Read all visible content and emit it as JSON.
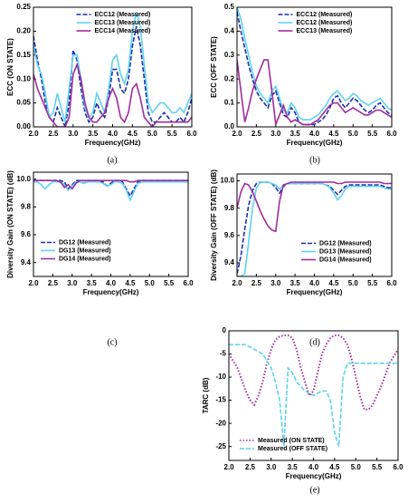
{
  "chart_data": [
    {
      "type": "line",
      "caption": "(a)",
      "x_label": "Frequency(GHz)",
      "y_label": "ECC (ON STATE)",
      "x": [
        2.0,
        2.1,
        2.2,
        2.3,
        2.4,
        2.5,
        2.6,
        2.7,
        2.8,
        2.9,
        3.0,
        3.1,
        3.2,
        3.3,
        3.4,
        3.5,
        3.6,
        3.7,
        3.8,
        3.9,
        4.0,
        4.1,
        4.2,
        4.3,
        4.4,
        4.5,
        4.6,
        4.7,
        4.8,
        4.9,
        5.0,
        5.1,
        5.2,
        5.3,
        5.4,
        5.5,
        5.6,
        5.7,
        5.8,
        5.9,
        6.0
      ],
      "xlim": [
        2.0,
        6.0
      ],
      "xticks": [
        {
          "value": 2.0,
          "label": "2.0"
        },
        2.5,
        {
          "value": 3.0,
          "label": "3.0"
        },
        3.5,
        {
          "value": 4.0,
          "label": "4.0"
        },
        4.5,
        {
          "value": 5.0,
          "label": "5.0"
        },
        5.5,
        {
          "value": 6.0,
          "label": "6.0"
        }
      ],
      "ylim": [
        0,
        0.25
      ],
      "yticks": [
        {
          "value": 0,
          "label": "0.00"
        },
        0.05,
        {
          "value": 0.1,
          "label": "0.10"
        },
        0.15,
        {
          "value": 0.2,
          "label": "0.20"
        },
        0.25
      ],
      "legend": "upper center",
      "series": [
        {
          "name": "ECC12 (Measured)",
          "color": "#1a2fb0",
          "style": "dashed",
          "values": [
            0.19,
            0.14,
            0.1,
            0.05,
            0.02,
            0.01,
            0.04,
            0.02,
            0.0,
            0.05,
            0.16,
            0.14,
            0.08,
            0.03,
            0.01,
            0.02,
            0.05,
            0.03,
            0.02,
            0.06,
            0.12,
            0.12,
            0.08,
            0.07,
            0.1,
            0.17,
            0.21,
            0.17,
            0.1,
            0.03,
            0.01,
            0.01,
            0.02,
            0.03,
            0.02,
            0.01,
            0.01,
            0.02,
            0.01,
            0.03,
            0.06
          ]
        },
        {
          "name": "ECC13 (Measured)",
          "color": "#5fd3f0",
          "style": "solid",
          "values": [
            0.17,
            0.13,
            0.11,
            0.07,
            0.02,
            0.03,
            0.07,
            0.04,
            0.01,
            0.08,
            0.15,
            0.15,
            0.1,
            0.04,
            0.02,
            0.03,
            0.07,
            0.05,
            0.03,
            0.08,
            0.14,
            0.15,
            0.11,
            0.09,
            0.12,
            0.2,
            0.24,
            0.21,
            0.13,
            0.05,
            0.03,
            0.04,
            0.05,
            0.05,
            0.04,
            0.03,
            0.03,
            0.04,
            0.03,
            0.05,
            0.07
          ]
        },
        {
          "name": "ECC14 (Measured)",
          "color": "#a02c9c",
          "style": "solid",
          "values": [
            0.11,
            0.08,
            0.06,
            0.04,
            0.02,
            0.01,
            0.0,
            0.0,
            0.0,
            0.02,
            0.11,
            0.13,
            0.1,
            0.05,
            0.02,
            0.01,
            0.01,
            0.02,
            0.03,
            0.06,
            0.08,
            0.06,
            0.02,
            0.01,
            0.03,
            0.08,
            0.09,
            0.06,
            0.02,
            0.01,
            0.0,
            0.01,
            0.01,
            0.01,
            0.01,
            0.01,
            0.01,
            0.01,
            0.01,
            0.01,
            0.02
          ]
        }
      ]
    },
    {
      "type": "line",
      "caption": "(b)",
      "x_label": "Frequency(GHz)",
      "y_label": "ECC (OFF STATE)",
      "x": [
        2.0,
        2.1,
        2.2,
        2.3,
        2.4,
        2.5,
        2.6,
        2.7,
        2.8,
        2.9,
        3.0,
        3.1,
        3.2,
        3.3,
        3.4,
        3.5,
        3.6,
        3.7,
        3.8,
        3.9,
        4.0,
        4.1,
        4.2,
        4.3,
        4.4,
        4.5,
        4.6,
        4.7,
        4.8,
        4.9,
        5.0,
        5.1,
        5.2,
        5.3,
        5.4,
        5.5,
        5.6,
        5.7,
        5.8,
        5.9,
        6.0
      ],
      "xlim": [
        2.0,
        6.0
      ],
      "xticks": [
        {
          "value": 2.0,
          "label": "2.0"
        },
        2.5,
        {
          "value": 3.0,
          "label": "3.0"
        },
        3.5,
        {
          "value": 4.0,
          "label": "4.0"
        },
        4.5,
        {
          "value": 5.0,
          "label": "5.0"
        },
        5.5,
        {
          "value": 6.0,
          "label": "6.0"
        }
      ],
      "ylim": [
        0,
        0.5
      ],
      "yticks": [
        {
          "value": 0,
          "label": "0.0"
        },
        0.1,
        0.2,
        0.3,
        0.4,
        0.5
      ],
      "legend": "upper center",
      "series": [
        {
          "name": "ECC12 (Measured)",
          "color": "#1a2fb0",
          "style": "dashed",
          "values": [
            0.48,
            0.4,
            0.33,
            0.26,
            0.2,
            0.15,
            0.12,
            0.1,
            0.08,
            0.13,
            0.15,
            0.1,
            0.05,
            0.04,
            0.08,
            0.06,
            0.02,
            0.01,
            0.01,
            0.01,
            0.01,
            0.02,
            0.03,
            0.05,
            0.08,
            0.12,
            0.13,
            0.1,
            0.08,
            0.1,
            0.12,
            0.11,
            0.09,
            0.07,
            0.06,
            0.07,
            0.09,
            0.1,
            0.08,
            0.06,
            0.05
          ]
        },
        {
          "name": "ECC12 (Measured)",
          "color": "#5fd3f0",
          "style": "solid",
          "values": [
            0.5,
            0.45,
            0.37,
            0.3,
            0.23,
            0.17,
            0.14,
            0.12,
            0.1,
            0.15,
            0.17,
            0.12,
            0.07,
            0.06,
            0.1,
            0.08,
            0.04,
            0.03,
            0.03,
            0.03,
            0.04,
            0.05,
            0.07,
            0.09,
            0.12,
            0.14,
            0.15,
            0.13,
            0.11,
            0.12,
            0.14,
            0.13,
            0.11,
            0.1,
            0.09,
            0.1,
            0.11,
            0.12,
            0.1,
            0.08,
            0.07
          ]
        },
        {
          "name": "ECC13 (Measured)",
          "color": "#a02c9c",
          "style": "solid",
          "values": [
            0.28,
            0.15,
            0.02,
            0.08,
            0.15,
            0.2,
            0.24,
            0.28,
            0.28,
            0.15,
            0.01,
            0.05,
            0.09,
            0.04,
            0.02,
            0.03,
            0.02,
            0.01,
            0.01,
            0.01,
            0.02,
            0.03,
            0.05,
            0.07,
            0.09,
            0.1,
            0.1,
            0.08,
            0.06,
            0.07,
            0.08,
            0.07,
            0.06,
            0.05,
            0.05,
            0.06,
            0.07,
            0.07,
            0.06,
            0.05,
            0.04
          ]
        }
      ]
    },
    {
      "type": "line",
      "caption": "(c)",
      "x_label": "Frequency(GHz)",
      "y_label": "Diversity Gain (ON STATE) (dB)",
      "x": [
        2.0,
        2.1,
        2.2,
        2.3,
        2.4,
        2.5,
        2.6,
        2.7,
        2.8,
        2.9,
        3.0,
        3.1,
        3.2,
        3.3,
        3.4,
        3.5,
        3.6,
        3.7,
        3.8,
        3.9,
        4.0,
        4.1,
        4.2,
        4.3,
        4.4,
        4.5,
        4.6,
        4.7,
        4.8,
        4.9,
        5.0,
        5.1,
        5.2,
        5.3,
        5.4,
        5.5,
        5.6,
        5.7,
        5.8,
        5.9,
        6.0
      ],
      "xlim": [
        2.0,
        6.0
      ],
      "xticks": [
        {
          "value": 2.0,
          "label": "2.0"
        },
        2.5,
        {
          "value": 3.0,
          "label": "3.0"
        },
        3.5,
        {
          "value": 4.0,
          "label": "4.0"
        },
        4.5,
        {
          "value": 5.0,
          "label": "5.0"
        },
        5.5,
        {
          "value": 6.0,
          "label": "6.0"
        }
      ],
      "ylim": [
        9.3,
        10.05
      ],
      "yticks": [
        9.4,
        9.6,
        9.8,
        {
          "value": 10.0,
          "label": "10.0"
        }
      ],
      "legend": "center left",
      "series": [
        {
          "name": "DG12 (Measured)",
          "color": "#1a2fb0",
          "style": "dashed",
          "values": [
            9.99,
            9.99,
            9.99,
            9.99,
            9.99,
            9.99,
            9.99,
            9.99,
            9.98,
            9.93,
            9.96,
            9.99,
            9.99,
            9.97,
            9.99,
            9.99,
            9.99,
            9.99,
            9.98,
            9.95,
            9.97,
            9.99,
            9.99,
            9.98,
            9.93,
            9.88,
            9.93,
            9.98,
            9.99,
            9.99,
            9.99,
            9.99,
            9.99,
            9.99,
            9.99,
            9.99,
            9.99,
            9.99,
            9.99,
            9.99,
            9.99
          ]
        },
        {
          "name": "DG13 (Measured)",
          "color": "#5fd3f0",
          "style": "solid",
          "values": [
            9.98,
            9.98,
            9.96,
            9.93,
            9.96,
            9.98,
            9.98,
            9.98,
            9.96,
            9.92,
            9.95,
            9.98,
            9.98,
            9.97,
            9.98,
            9.98,
            9.98,
            9.98,
            9.97,
            9.95,
            9.96,
            9.98,
            9.98,
            9.97,
            9.92,
            9.85,
            9.91,
            9.97,
            9.98,
            9.98,
            9.98,
            9.98,
            9.98,
            9.98,
            9.98,
            9.98,
            9.98,
            9.98,
            9.98,
            9.98,
            9.98
          ]
        },
        {
          "name": "DG14 (Measured)",
          "color": "#a02c9c",
          "style": "solid",
          "values": [
            9.99,
            9.99,
            9.99,
            9.99,
            9.99,
            9.99,
            9.99,
            9.98,
            9.94,
            9.96,
            9.93,
            9.97,
            9.99,
            9.99,
            9.99,
            9.99,
            9.99,
            9.99,
            9.99,
            9.99,
            9.99,
            9.99,
            9.99,
            9.99,
            9.99,
            9.98,
            9.98,
            9.99,
            9.99,
            9.99,
            9.99,
            9.99,
            9.99,
            9.99,
            9.99,
            9.99,
            9.99,
            9.99,
            9.99,
            9.99,
            9.99
          ]
        }
      ]
    },
    {
      "type": "line",
      "caption": "(d)",
      "x_label": "Frequency(GHz)",
      "y_label": "Diversity Gain (OFF STATE) (dB)",
      "x": [
        2.0,
        2.1,
        2.2,
        2.3,
        2.4,
        2.5,
        2.6,
        2.7,
        2.8,
        2.9,
        3.0,
        3.1,
        3.2,
        3.3,
        3.4,
        3.5,
        3.6,
        3.7,
        3.8,
        3.9,
        4.0,
        4.1,
        4.2,
        4.3,
        4.4,
        4.5,
        4.6,
        4.7,
        4.8,
        4.9,
        5.0,
        5.1,
        5.2,
        5.3,
        5.4,
        5.5,
        5.6,
        5.7,
        5.8,
        5.9,
        6.0
      ],
      "xlim": [
        2.0,
        6.0
      ],
      "xticks": [
        {
          "value": 2.0,
          "label": "2.0"
        },
        2.5,
        {
          "value": 3.0,
          "label": "3.0"
        },
        3.5,
        {
          "value": 4.0,
          "label": "4.0"
        },
        4.5,
        {
          "value": 5.0,
          "label": "5.0"
        },
        5.5,
        {
          "value": 6.0,
          "label": "6.0"
        }
      ],
      "ylim": [
        9.3,
        10.05
      ],
      "yticks": [
        9.4,
        9.6,
        9.8,
        {
          "value": 10.0,
          "label": "10.0"
        }
      ],
      "legend": "center right",
      "series": [
        {
          "name": "DG12 (Measured)",
          "color": "#1a2fb0",
          "style": "dashed",
          "values": [
            9.32,
            9.45,
            9.65,
            9.82,
            9.93,
            9.98,
            9.99,
            9.99,
            9.99,
            9.98,
            9.95,
            9.91,
            9.96,
            9.98,
            9.98,
            9.98,
            9.98,
            9.98,
            9.98,
            9.98,
            9.98,
            9.98,
            9.98,
            9.97,
            9.96,
            9.93,
            9.9,
            9.93,
            9.96,
            9.97,
            9.97,
            9.97,
            9.97,
            9.97,
            9.97,
            9.97,
            9.97,
            9.97,
            9.96,
            9.95,
            9.95
          ]
        },
        {
          "name": "DG13 (Measured)",
          "color": "#5fd3f0",
          "style": "solid",
          "values": [
            9.3,
            9.3,
            9.32,
            9.55,
            9.8,
            9.95,
            9.99,
            9.99,
            9.99,
            9.98,
            9.97,
            9.94,
            9.97,
            9.98,
            9.98,
            9.98,
            9.98,
            9.98,
            9.98,
            9.98,
            9.98,
            9.98,
            9.98,
            9.97,
            9.95,
            9.91,
            9.86,
            9.89,
            9.94,
            9.96,
            9.96,
            9.96,
            9.96,
            9.96,
            9.96,
            9.96,
            9.96,
            9.96,
            9.95,
            9.94,
            9.94
          ]
        },
        {
          "name": "DG14 (Measured)",
          "color": "#a02c9c",
          "style": "solid",
          "values": [
            9.8,
            9.92,
            9.98,
            9.97,
            9.92,
            9.85,
            9.78,
            9.72,
            9.67,
            9.64,
            9.63,
            9.85,
            9.97,
            9.98,
            9.99,
            9.99,
            9.99,
            9.99,
            9.99,
            9.99,
            9.99,
            9.99,
            9.99,
            9.99,
            9.99,
            9.99,
            9.98,
            9.98,
            9.99,
            9.99,
            9.99,
            9.99,
            9.99,
            9.99,
            9.99,
            9.99,
            9.99,
            9.99,
            9.98,
            9.98,
            9.98
          ]
        }
      ]
    },
    {
      "type": "line",
      "caption": "(e)",
      "x_label": "Frequency(GHz)",
      "y_label": "TARC (dB)",
      "x": [
        2.0,
        2.1,
        2.2,
        2.3,
        2.4,
        2.5,
        2.6,
        2.7,
        2.8,
        2.9,
        3.0,
        3.1,
        3.2,
        3.3,
        3.4,
        3.5,
        3.6,
        3.7,
        3.8,
        3.9,
        4.0,
        4.1,
        4.2,
        4.3,
        4.4,
        4.5,
        4.6,
        4.7,
        4.8,
        4.9,
        5.0,
        5.1,
        5.2,
        5.3,
        5.4,
        5.5,
        5.6,
        5.7,
        5.8,
        5.9,
        6.0
      ],
      "xlim": [
        2.0,
        6.0
      ],
      "xticks": [
        {
          "value": 2.0,
          "label": "2.0"
        },
        2.5,
        {
          "value": 3.0,
          "label": "3.0"
        },
        3.5,
        {
          "value": 4.0,
          "label": "4.0"
        },
        4.5,
        {
          "value": 5.0,
          "label": "5.0"
        },
        5.5,
        {
          "value": 6.0,
          "label": "6.0"
        }
      ],
      "ylim": [
        -28,
        0
      ],
      "yticks": [
        0,
        -5,
        -10,
        -15,
        -20,
        -25
      ],
      "legend": "lower left",
      "series": [
        {
          "name": "Measured (ON STATE)",
          "color": "#a02c9c",
          "style": "dotted",
          "values": [
            -5,
            -6.5,
            -8,
            -10.5,
            -13,
            -15,
            -16,
            -14,
            -11,
            -7,
            -4,
            -2,
            -1.2,
            -1,
            -1,
            -1.5,
            -4,
            -8,
            -11,
            -14,
            -13,
            -9,
            -5,
            -3,
            -1.5,
            -1,
            -1,
            -1.5,
            -3,
            -6,
            -10,
            -14,
            -17,
            -17,
            -16,
            -14,
            -12,
            -9.5,
            -7,
            -5.5,
            -4
          ]
        },
        {
          "name": "Measured (OFF STATE)",
          "color": "#5fd3f0",
          "style": "dashed",
          "values": [
            -3,
            -3,
            -3,
            -3,
            -3,
            -3.5,
            -4,
            -4.5,
            -5,
            -6.5,
            -8,
            -11,
            -15,
            -25,
            -8,
            -9,
            -11,
            -12,
            -13,
            -13.5,
            -14,
            -13.5,
            -13,
            -13,
            -15,
            -22,
            -25,
            -10,
            -7,
            -7,
            -7,
            -7,
            -7,
            -7,
            -7,
            -7,
            -7,
            -7,
            -7,
            -7,
            -7
          ]
        }
      ]
    }
  ]
}
